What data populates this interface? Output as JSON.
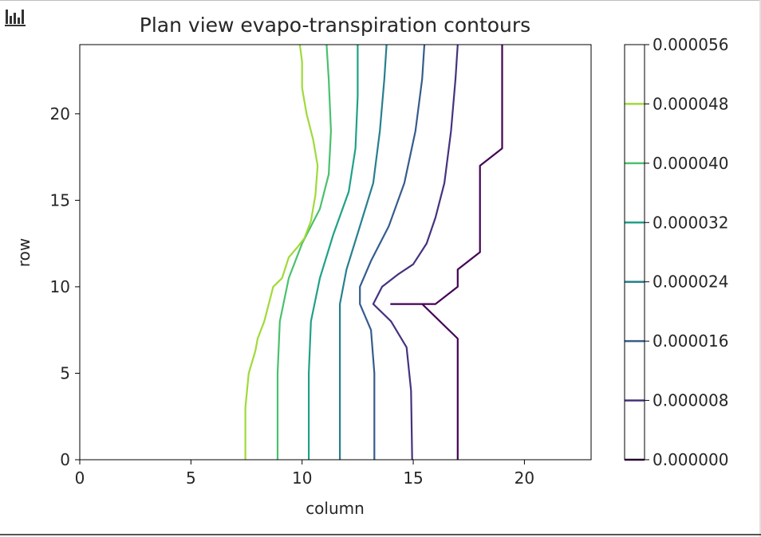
{
  "toolbar": {
    "icon": "bar-chart-icon"
  },
  "chart_data": {
    "type": "contour",
    "title": "Plan view evapo-transpiration contours",
    "xlabel": "column",
    "ylabel": "row",
    "xlim": [
      0,
      23
    ],
    "ylim": [
      0,
      24
    ],
    "xticks": [
      0,
      5,
      10,
      15,
      20
    ],
    "yticks": [
      0,
      5,
      10,
      15,
      20
    ],
    "colorbar": {
      "ticks": [
        "0.000000",
        "0.000008",
        "0.000016",
        "0.000024",
        "0.000032",
        "0.000040",
        "0.000048",
        "0.000056"
      ],
      "range": [
        0,
        5.6e-05
      ]
    },
    "series": [
      {
        "level": 0.0,
        "color": "#440154",
        "points": [
          [
            17,
            0
          ],
          [
            17,
            7
          ],
          [
            15.4,
            9
          ],
          [
            14,
            9
          ],
          [
            16,
            9
          ],
          [
            17,
            10
          ],
          [
            17,
            11
          ],
          [
            18,
            12
          ],
          [
            18,
            17
          ],
          [
            19,
            18
          ],
          [
            19,
            24
          ]
        ]
      },
      {
        "level": 8e-06,
        "color": "#46327e",
        "points": [
          [
            14.95,
            0
          ],
          [
            14.9,
            4
          ],
          [
            14.7,
            6.5
          ],
          [
            14,
            8
          ],
          [
            13.2,
            9
          ],
          [
            13.6,
            10
          ],
          [
            14.3,
            10.7
          ],
          [
            15,
            11.3
          ],
          [
            15.6,
            12.5
          ],
          [
            16,
            14
          ],
          [
            16.4,
            16
          ],
          [
            16.7,
            19
          ],
          [
            16.9,
            22
          ],
          [
            17,
            24
          ]
        ]
      },
      {
        "level": 1.6e-05,
        "color": "#365c8d",
        "points": [
          [
            13.25,
            0
          ],
          [
            13.25,
            5
          ],
          [
            13.1,
            7.5
          ],
          [
            12.6,
            9
          ],
          [
            12.6,
            10
          ],
          [
            13.1,
            11.5
          ],
          [
            13.9,
            13.5
          ],
          [
            14.6,
            16
          ],
          [
            15.1,
            19
          ],
          [
            15.4,
            22
          ],
          [
            15.5,
            24
          ]
        ]
      },
      {
        "level": 2.4e-05,
        "color": "#277f8e",
        "points": [
          [
            11.7,
            0
          ],
          [
            11.7,
            6
          ],
          [
            11.7,
            9
          ],
          [
            12.0,
            11
          ],
          [
            12.6,
            13.5
          ],
          [
            13.2,
            16
          ],
          [
            13.5,
            19
          ],
          [
            13.7,
            22
          ],
          [
            13.8,
            24
          ]
        ]
      },
      {
        "level": 3.2e-05,
        "color": "#1fa187",
        "points": [
          [
            10.3,
            0
          ],
          [
            10.3,
            5
          ],
          [
            10.4,
            8
          ],
          [
            10.8,
            10.5
          ],
          [
            11.4,
            13
          ],
          [
            12.1,
            15.5
          ],
          [
            12.4,
            18
          ],
          [
            12.5,
            21
          ],
          [
            12.5,
            24
          ]
        ]
      },
      {
        "level": 4e-05,
        "color": "#4ac16d",
        "points": [
          [
            8.9,
            0
          ],
          [
            8.9,
            5
          ],
          [
            9.0,
            8
          ],
          [
            9.4,
            10.5
          ],
          [
            10.0,
            12.5
          ],
          [
            10.8,
            14.5
          ],
          [
            11.2,
            16.5
          ],
          [
            11.3,
            19
          ],
          [
            11.2,
            22
          ],
          [
            11.1,
            24
          ]
        ]
      },
      {
        "level": 4.8e-05,
        "color": "#a0da39",
        "points": [
          [
            7.45,
            0
          ],
          [
            7.45,
            3
          ],
          [
            7.6,
            5
          ],
          [
            7.9,
            6.3
          ],
          [
            8.0,
            7
          ],
          [
            8.3,
            8
          ],
          [
            8.5,
            9
          ],
          [
            8.7,
            10
          ],
          [
            9.1,
            10.5
          ],
          [
            9.4,
            11.7
          ],
          [
            9.8,
            12.3
          ],
          [
            10.1,
            12.8
          ],
          [
            10.4,
            13.8
          ],
          [
            10.6,
            15.3
          ],
          [
            10.7,
            17
          ],
          [
            10.5,
            18.5
          ],
          [
            10.2,
            20
          ],
          [
            10.0,
            21.5
          ],
          [
            10.0,
            23
          ],
          [
            9.9,
            24
          ]
        ]
      }
    ]
  }
}
